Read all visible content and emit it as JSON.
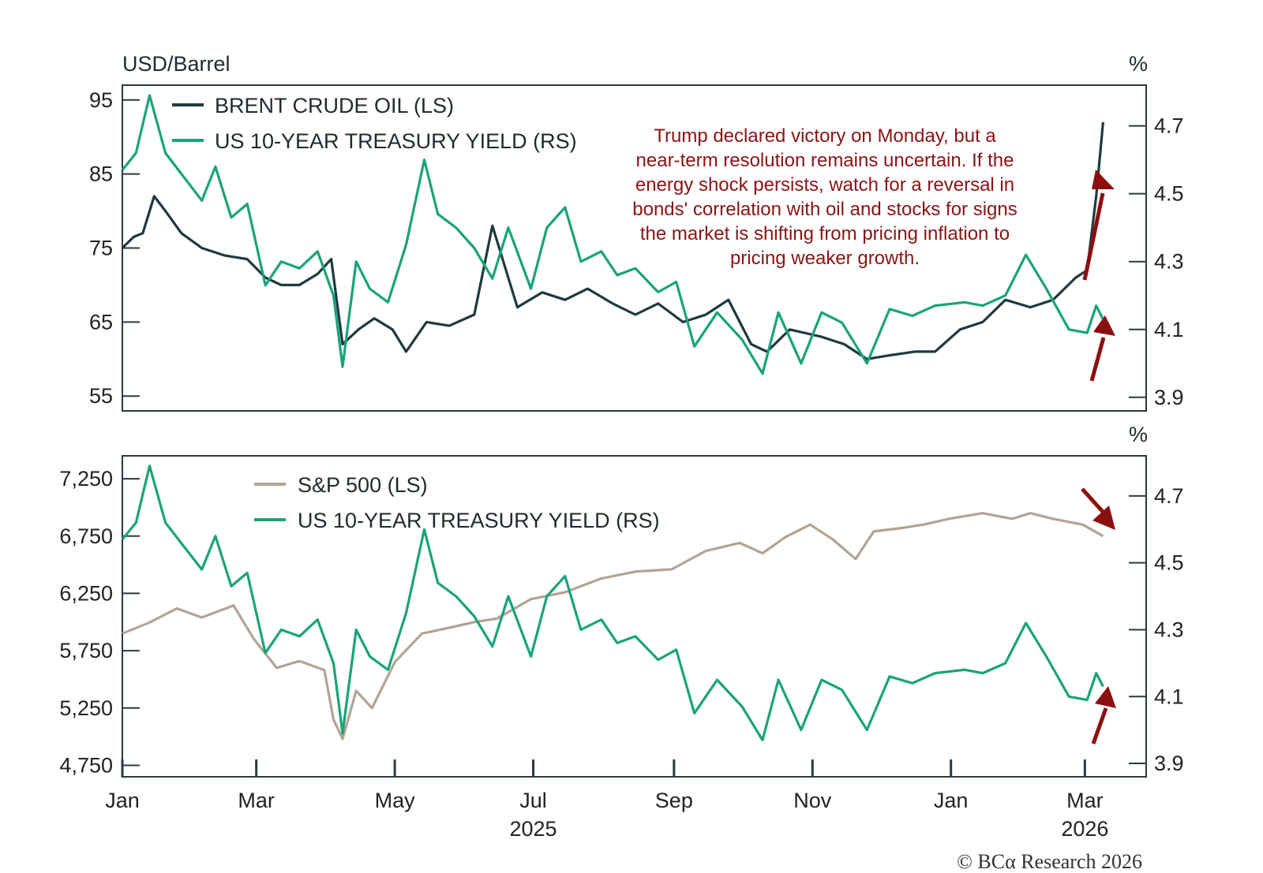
{
  "chart_data": [
    {
      "type": "line",
      "left_unit": "USD/Barrel",
      "right_unit": "%",
      "ylim_left": [
        53,
        97
      ],
      "ylim_right": [
        3.86,
        4.82
      ],
      "yticks_left": [
        "95",
        "85",
        "75",
        "65",
        "55"
      ],
      "yticks_right": [
        "4.7",
        "4.5",
        "4.3",
        "4.1",
        "3.9"
      ],
      "series": [
        {
          "name": "BRENT CRUDE OIL (LS)",
          "axis": "left",
          "color": "#1e3a40",
          "x": [
            "2025-01-01",
            "2025-01-06",
            "2025-01-10",
            "2025-01-15",
            "2025-01-20",
            "2025-01-27",
            "2025-02-05",
            "2025-02-15",
            "2025-02-25",
            "2025-03-05",
            "2025-03-12",
            "2025-03-20",
            "2025-03-28",
            "2025-04-03",
            "2025-04-08",
            "2025-04-15",
            "2025-04-22",
            "2025-04-30",
            "2025-05-06",
            "2025-05-15",
            "2025-05-25",
            "2025-06-05",
            "2025-06-13",
            "2025-06-19",
            "2025-06-24",
            "2025-07-05",
            "2025-07-15",
            "2025-07-25",
            "2025-08-05",
            "2025-08-15",
            "2025-08-25",
            "2025-09-05",
            "2025-09-15",
            "2025-09-25",
            "2025-10-05",
            "2025-10-12",
            "2025-10-22",
            "2025-11-05",
            "2025-11-15",
            "2025-11-25",
            "2025-12-05",
            "2025-12-16",
            "2025-12-25",
            "2026-01-05",
            "2026-01-15",
            "2026-01-25",
            "2026-02-05",
            "2026-02-15",
            "2026-02-25",
            "2026-03-02",
            "2026-03-06",
            "2026-03-09"
          ],
          "values": [
            75,
            76.5,
            77,
            82,
            80,
            77,
            75,
            74,
            73.5,
            71,
            70,
            70,
            71.5,
            73.5,
            62,
            64,
            65.5,
            64,
            61,
            65,
            64.5,
            66,
            78,
            72,
            67,
            69,
            68,
            69.5,
            67.5,
            66,
            67.5,
            65,
            66,
            68,
            62,
            61,
            64,
            63,
            62,
            60,
            60.5,
            61,
            61,
            64,
            65,
            68,
            67,
            68,
            71,
            72,
            82,
            92
          ]
        },
        {
          "name": "US 10-YEAR TREASURY YIELD (RS)",
          "axis": "right",
          "color": "#1aa37a",
          "x": [
            "2025-01-01",
            "2025-01-07",
            "2025-01-13",
            "2025-01-20",
            "2025-01-28",
            "2025-02-05",
            "2025-02-11",
            "2025-02-18",
            "2025-02-25",
            "2025-03-05",
            "2025-03-12",
            "2025-03-20",
            "2025-03-28",
            "2025-04-04",
            "2025-04-08",
            "2025-04-14",
            "2025-04-20",
            "2025-04-28",
            "2025-05-06",
            "2025-05-14",
            "2025-05-20",
            "2025-05-28",
            "2025-06-05",
            "2025-06-13",
            "2025-06-20",
            "2025-06-30",
            "2025-07-07",
            "2025-07-15",
            "2025-07-22",
            "2025-07-31",
            "2025-08-07",
            "2025-08-15",
            "2025-08-25",
            "2025-09-02",
            "2025-09-10",
            "2025-09-20",
            "2025-10-01",
            "2025-10-10",
            "2025-10-17",
            "2025-10-27",
            "2025-11-05",
            "2025-11-14",
            "2025-11-25",
            "2025-12-05",
            "2025-12-15",
            "2025-12-25",
            "2026-01-07",
            "2026-01-15",
            "2026-01-25",
            "2026-02-03",
            "2026-02-12",
            "2026-02-22",
            "2026-03-02",
            "2026-03-06",
            "2026-03-09"
          ],
          "values": [
            4.57,
            4.62,
            4.79,
            4.62,
            4.55,
            4.48,
            4.58,
            4.43,
            4.47,
            4.23,
            4.3,
            4.28,
            4.33,
            4.2,
            3.99,
            4.3,
            4.22,
            4.18,
            4.35,
            4.6,
            4.44,
            4.4,
            4.34,
            4.25,
            4.4,
            4.22,
            4.4,
            4.46,
            4.3,
            4.33,
            4.26,
            4.28,
            4.21,
            4.24,
            4.05,
            4.15,
            4.07,
            3.97,
            4.15,
            4.0,
            4.15,
            4.12,
            4.0,
            4.16,
            4.14,
            4.17,
            4.18,
            4.17,
            4.2,
            4.32,
            4.22,
            4.1,
            4.09,
            4.17,
            4.13
          ]
        }
      ],
      "annotation": [
        "Trump declared victory on Monday, but a",
        "near-term resolution remains uncertain. If the",
        "energy shock persists, watch for a reversal in",
        "bonds' correlation with oil and stocks for signs",
        "the market is shifting from pricing inflation to",
        "pricing weaker growth."
      ]
    },
    {
      "type": "line",
      "right_unit": "%",
      "ylim_left": [
        4650,
        7450
      ],
      "ylim_right": [
        3.86,
        4.82
      ],
      "yticks_left": [
        "7,250",
        "6,750",
        "6,250",
        "5,750",
        "5,250",
        "4,750"
      ],
      "yticks_right": [
        "4.7",
        "4.5",
        "4.3",
        "4.1",
        "3.9"
      ],
      "xticks": [
        "Jan",
        "Mar",
        "May",
        "Jul",
        "Sep",
        "Nov",
        "Jan",
        "Mar"
      ],
      "year_labels": [
        "2025",
        "2026"
      ],
      "series": [
        {
          "name": "S&P 500 (LS)",
          "axis": "left",
          "color": "#b3a493",
          "x": [
            "2025-01-01",
            "2025-01-13",
            "2025-01-25",
            "2025-02-05",
            "2025-02-19",
            "2025-02-28",
            "2025-03-10",
            "2025-03-20",
            "2025-03-31",
            "2025-04-04",
            "2025-04-08",
            "2025-04-14",
            "2025-04-21",
            "2025-05-01",
            "2025-05-13",
            "2025-05-25",
            "2025-06-05",
            "2025-06-15",
            "2025-06-30",
            "2025-07-15",
            "2025-07-31",
            "2025-08-15",
            "2025-08-31",
            "2025-09-15",
            "2025-09-30",
            "2025-10-10",
            "2025-10-20",
            "2025-10-31",
            "2025-11-10",
            "2025-11-20",
            "2025-11-28",
            "2025-12-10",
            "2025-12-20",
            "2025-12-31",
            "2026-01-15",
            "2026-01-28",
            "2026-02-05",
            "2026-02-15",
            "2026-02-28",
            "2026-03-09"
          ],
          "values": [
            5900,
            5996,
            6118,
            6040,
            6144,
            5850,
            5600,
            5660,
            5580,
            5150,
            4980,
            5400,
            5250,
            5650,
            5900,
            5950,
            6000,
            6030,
            6200,
            6260,
            6380,
            6440,
            6460,
            6620,
            6690,
            6600,
            6740,
            6850,
            6720,
            6550,
            6790,
            6820,
            6850,
            6900,
            6950,
            6900,
            6950,
            6900,
            6850,
            6750
          ]
        },
        {
          "name": "US 10-YEAR TREASURY YIELD (RS)",
          "axis": "right",
          "color": "#1aa37a",
          "x": [
            "2025-01-01",
            "2025-01-07",
            "2025-01-13",
            "2025-01-20",
            "2025-01-28",
            "2025-02-05",
            "2025-02-11",
            "2025-02-18",
            "2025-02-25",
            "2025-03-05",
            "2025-03-12",
            "2025-03-20",
            "2025-03-28",
            "2025-04-04",
            "2025-04-08",
            "2025-04-14",
            "2025-04-20",
            "2025-04-28",
            "2025-05-06",
            "2025-05-14",
            "2025-05-20",
            "2025-05-28",
            "2025-06-05",
            "2025-06-13",
            "2025-06-20",
            "2025-06-30",
            "2025-07-07",
            "2025-07-15",
            "2025-07-22",
            "2025-07-31",
            "2025-08-07",
            "2025-08-15",
            "2025-08-25",
            "2025-09-02",
            "2025-09-10",
            "2025-09-20",
            "2025-10-01",
            "2025-10-10",
            "2025-10-17",
            "2025-10-27",
            "2025-11-05",
            "2025-11-14",
            "2025-11-25",
            "2025-12-05",
            "2025-12-15",
            "2025-12-25",
            "2026-01-07",
            "2026-01-15",
            "2026-01-25",
            "2026-02-03",
            "2026-02-12",
            "2026-02-22",
            "2026-03-02",
            "2026-03-06",
            "2026-03-09"
          ],
          "values": [
            4.57,
            4.62,
            4.79,
            4.62,
            4.55,
            4.48,
            4.58,
            4.43,
            4.47,
            4.23,
            4.3,
            4.28,
            4.33,
            4.2,
            3.99,
            4.3,
            4.22,
            4.18,
            4.35,
            4.6,
            4.44,
            4.4,
            4.34,
            4.25,
            4.4,
            4.22,
            4.4,
            4.46,
            4.3,
            4.33,
            4.26,
            4.28,
            4.21,
            4.24,
            4.05,
            4.15,
            4.07,
            3.97,
            4.15,
            4.0,
            4.15,
            4.12,
            4.0,
            4.16,
            4.14,
            4.17,
            4.18,
            4.17,
            4.2,
            4.32,
            4.22,
            4.1,
            4.09,
            4.17,
            4.13
          ]
        }
      ]
    }
  ],
  "credit": "© BCα Research 2026",
  "colors": {
    "annotation": "#8a1414",
    "arrow": "#8b0f0f",
    "frame": "#2b3a3e"
  }
}
